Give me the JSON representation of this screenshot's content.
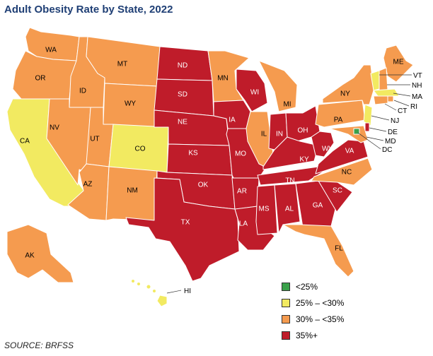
{
  "title": "Adult Obesity Rate by State, 2022",
  "source": "SOURCE: BRFSS",
  "colors": {
    "lt25": "#3aa14a",
    "c25_30": "#f2ea61",
    "c30_35": "#f59b4f",
    "c35p": "#bf1c2a"
  },
  "legend": [
    {
      "label": "<25%",
      "category": "lt25"
    },
    {
      "label": "25% – <30%",
      "category": "c25_30"
    },
    {
      "label": "30% – <35%",
      "category": "c30_35"
    },
    {
      "label": "35%+",
      "category": "c35p"
    }
  ],
  "states": [
    {
      "abbr": "WA",
      "category": "c30_35"
    },
    {
      "abbr": "OR",
      "category": "c30_35"
    },
    {
      "abbr": "CA",
      "category": "c25_30"
    },
    {
      "abbr": "ID",
      "category": "c30_35"
    },
    {
      "abbr": "NV",
      "category": "c30_35"
    },
    {
      "abbr": "MT",
      "category": "c30_35"
    },
    {
      "abbr": "WY",
      "category": "c30_35"
    },
    {
      "abbr": "UT",
      "category": "c30_35"
    },
    {
      "abbr": "CO",
      "category": "c25_30"
    },
    {
      "abbr": "AZ",
      "category": "c30_35"
    },
    {
      "abbr": "NM",
      "category": "c30_35"
    },
    {
      "abbr": "ND",
      "category": "c35p"
    },
    {
      "abbr": "SD",
      "category": "c35p"
    },
    {
      "abbr": "NE",
      "category": "c35p"
    },
    {
      "abbr": "KS",
      "category": "c35p"
    },
    {
      "abbr": "OK",
      "category": "c35p"
    },
    {
      "abbr": "TX",
      "category": "c35p"
    },
    {
      "abbr": "MN",
      "category": "c30_35"
    },
    {
      "abbr": "IA",
      "category": "c35p"
    },
    {
      "abbr": "MO",
      "category": "c35p"
    },
    {
      "abbr": "AR",
      "category": "c35p"
    },
    {
      "abbr": "LA",
      "category": "c35p"
    },
    {
      "abbr": "WI",
      "category": "c35p"
    },
    {
      "abbr": "IL",
      "category": "c30_35"
    },
    {
      "abbr": "MI",
      "category": "c30_35"
    },
    {
      "abbr": "IN",
      "category": "c35p"
    },
    {
      "abbr": "OH",
      "category": "c35p"
    },
    {
      "abbr": "KY",
      "category": "c35p"
    },
    {
      "abbr": "TN",
      "category": "c35p"
    },
    {
      "abbr": "MS",
      "category": "c35p"
    },
    {
      "abbr": "AL",
      "category": "c35p"
    },
    {
      "abbr": "GA",
      "category": "c35p"
    },
    {
      "abbr": "FL",
      "category": "c30_35"
    },
    {
      "abbr": "SC",
      "category": "c35p"
    },
    {
      "abbr": "NC",
      "category": "c30_35"
    },
    {
      "abbr": "VA",
      "category": "c35p"
    },
    {
      "abbr": "WV",
      "category": "c35p"
    },
    {
      "abbr": "PA",
      "category": "c30_35"
    },
    {
      "abbr": "NY",
      "category": "c30_35"
    },
    {
      "abbr": "ME",
      "category": "c30_35"
    },
    {
      "abbr": "VT",
      "category": "c25_30"
    },
    {
      "abbr": "NH",
      "category": "c30_35"
    },
    {
      "abbr": "MA",
      "category": "c25_30"
    },
    {
      "abbr": "RI",
      "category": "c30_35"
    },
    {
      "abbr": "CT",
      "category": "c30_35"
    },
    {
      "abbr": "NJ",
      "category": "c25_30"
    },
    {
      "abbr": "DE",
      "category": "c35p"
    },
    {
      "abbr": "MD",
      "category": "c30_35"
    },
    {
      "abbr": "DC",
      "category": "lt25"
    },
    {
      "abbr": "AK",
      "category": "c30_35"
    },
    {
      "abbr": "HI",
      "category": "c25_30"
    }
  ]
}
